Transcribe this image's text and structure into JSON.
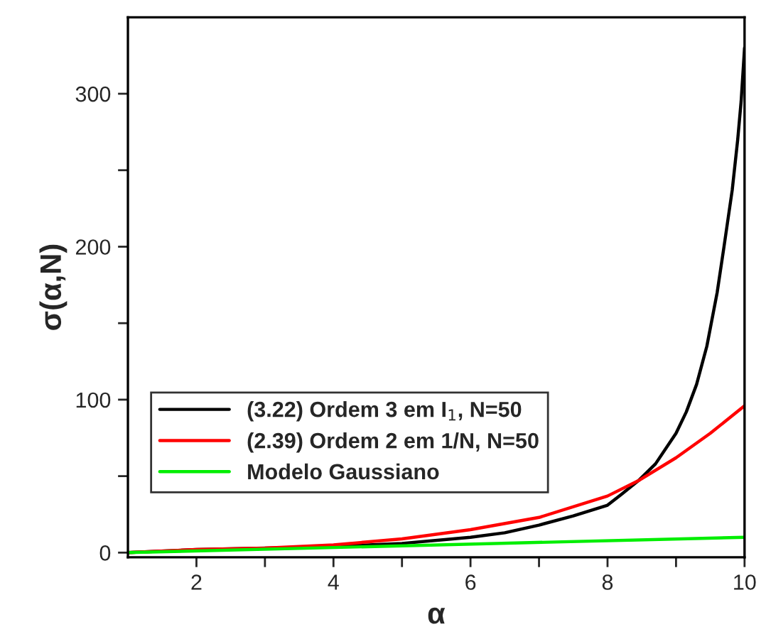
{
  "chart_data": {
    "type": "line",
    "xlabel": "α",
    "ylabel": "σ(α,N)",
    "xlim": [
      1,
      10
    ],
    "ylim": [
      -3,
      350
    ],
    "xticks": [
      2,
      {
        "value": 3,
        "label": null
      },
      4,
      {
        "value": 5,
        "label": null
      },
      6,
      {
        "value": 7,
        "label": null
      },
      8,
      {
        "value": 9,
        "label": null
      },
      10
    ],
    "yticks": [
      0,
      {
        "value": 50,
        "label": null
      },
      100,
      {
        "value": 150,
        "label": null
      },
      200,
      {
        "value": 250,
        "label": null
      },
      300
    ],
    "grid": false,
    "legend": "bottom left",
    "marker": "none",
    "line_style": "solid",
    "series": [
      {
        "name": "(3.22) Ordem 3 em I$_{1}$, N=50",
        "color": "#000000",
        "x": [
          1,
          2,
          3,
          4,
          5,
          6,
          6.5,
          7,
          7.5,
          8,
          8.2,
          8.45,
          8.7,
          9,
          9.15,
          9.3,
          9.45,
          9.6,
          9.7,
          9.82,
          9.9,
          9.95,
          10
        ],
        "values": [
          0,
          2,
          3,
          4,
          6,
          10,
          13,
          18,
          24,
          31,
          38,
          47,
          58,
          78,
          92,
          110,
          135,
          170,
          200,
          237,
          270,
          295,
          330
        ]
      },
      {
        "name": "(2.39) Ordem 2 em 1/N, N=50",
        "color": "#ff0000",
        "x": [
          1,
          2,
          3,
          4,
          5,
          6,
          7,
          8,
          8.45,
          9,
          9.5,
          10
        ],
        "values": [
          0,
          2,
          3,
          5,
          9,
          15,
          23,
          37,
          47,
          62,
          78,
          96
        ]
      },
      {
        "name": "Modelo Gaussiano",
        "color": "#00ee00",
        "x": [
          1,
          10
        ],
        "values": [
          0,
          10
        ]
      }
    ]
  }
}
